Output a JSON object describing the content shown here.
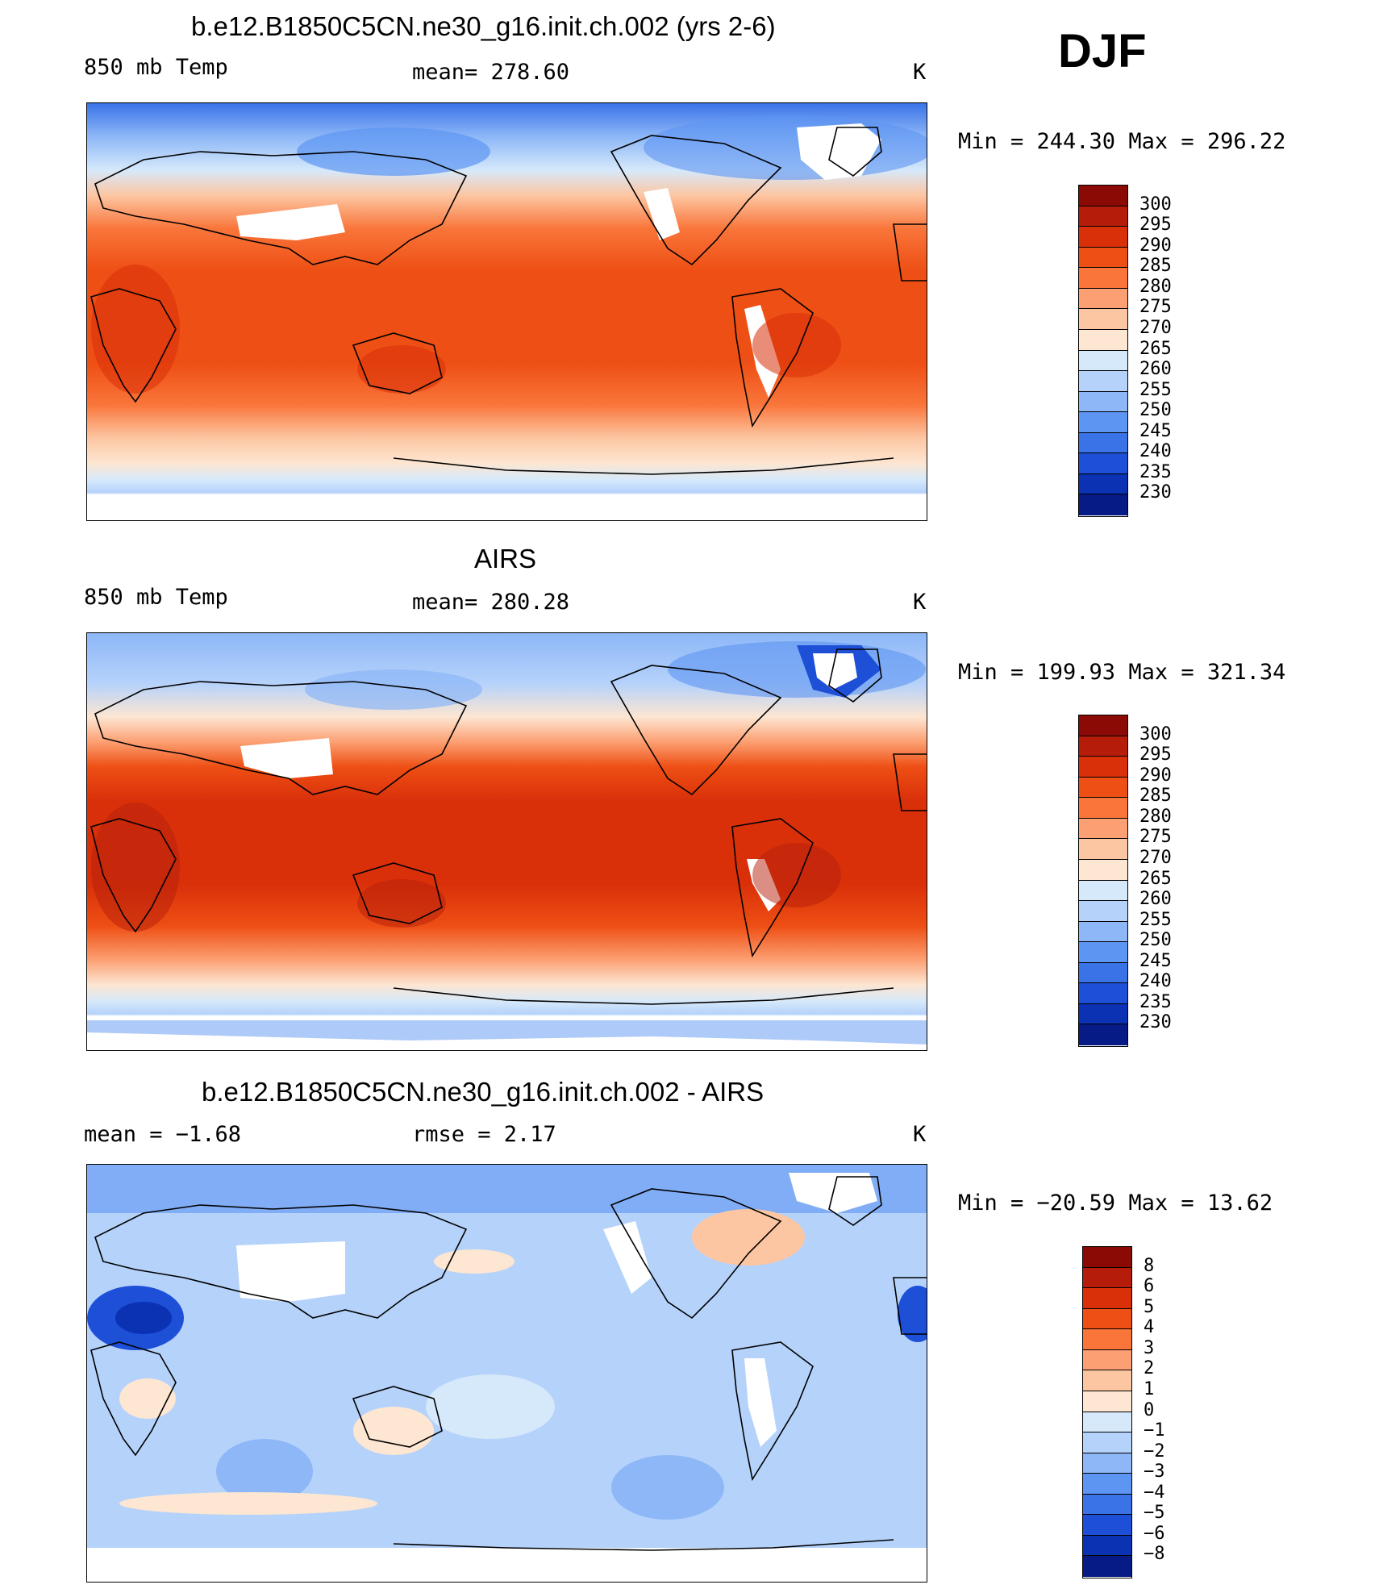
{
  "season": "DJF",
  "panels": [
    {
      "title": "b.e12.B1850C5CN.ne30_g16.init.ch.002 (yrs 2-6)",
      "left_label": "850 mb Temp",
      "center_label": "mean=  278.60",
      "units": "K",
      "minmax": "Min  =  244.30  Max  =  296.22",
      "colorbar": {
        "labels": [
          "300",
          "295",
          "290",
          "285",
          "280",
          "275",
          "270",
          "265",
          "260",
          "255",
          "250",
          "245",
          "240",
          "235",
          "230"
        ],
        "colors": [
          "#8b0a06",
          "#b51d0a",
          "#d9300a",
          "#ee4f14",
          "#f9753a",
          "#fc9f72",
          "#fdc6a2",
          "#fde6d2",
          "#d6e9fb",
          "#b5d2fb",
          "#8db7f7",
          "#5d95f2",
          "#3a73e8",
          "#1d4fd7",
          "#0a32b3",
          "#061b86"
        ]
      }
    },
    {
      "title": "AIRS",
      "left_label": "850 mb Temp",
      "center_label": "mean=  280.28",
      "units": "K",
      "minmax": "Min  =  199.93  Max  =  321.34",
      "colorbar": {
        "labels": [
          "300",
          "295",
          "290",
          "285",
          "280",
          "275",
          "270",
          "265",
          "260",
          "255",
          "250",
          "245",
          "240",
          "235",
          "230"
        ],
        "colors": [
          "#8b0a06",
          "#b51d0a",
          "#d9300a",
          "#ee4f14",
          "#f9753a",
          "#fc9f72",
          "#fdc6a2",
          "#fde6d2",
          "#d6e9fb",
          "#b5d2fb",
          "#8db7f7",
          "#5d95f2",
          "#3a73e8",
          "#1d4fd7",
          "#0a32b3",
          "#061b86"
        ]
      }
    },
    {
      "title": "b.e12.B1850C5CN.ne30_g16.init.ch.002 - AIRS",
      "left_label": "mean  =    −1.68",
      "center_label": "rmse  =    2.17",
      "units": "K",
      "minmax": "Min  =  −20.59  Max  =   13.62",
      "colorbar": {
        "labels": [
          "8",
          "6",
          "5",
          "4",
          "3",
          "2",
          "1",
          "0",
          "−1",
          "−2",
          "−3",
          "−4",
          "−5",
          "−6",
          "−8"
        ],
        "colors": [
          "#8b0a06",
          "#b51d0a",
          "#d9300a",
          "#ee4f14",
          "#f9753a",
          "#fc9f72",
          "#fdc6a2",
          "#fde6d2",
          "#d6e9fb",
          "#b5d2fb",
          "#8db7f7",
          "#5d95f2",
          "#3a73e8",
          "#1d4fd7",
          "#0a32b3",
          "#061b86"
        ]
      }
    }
  ]
}
